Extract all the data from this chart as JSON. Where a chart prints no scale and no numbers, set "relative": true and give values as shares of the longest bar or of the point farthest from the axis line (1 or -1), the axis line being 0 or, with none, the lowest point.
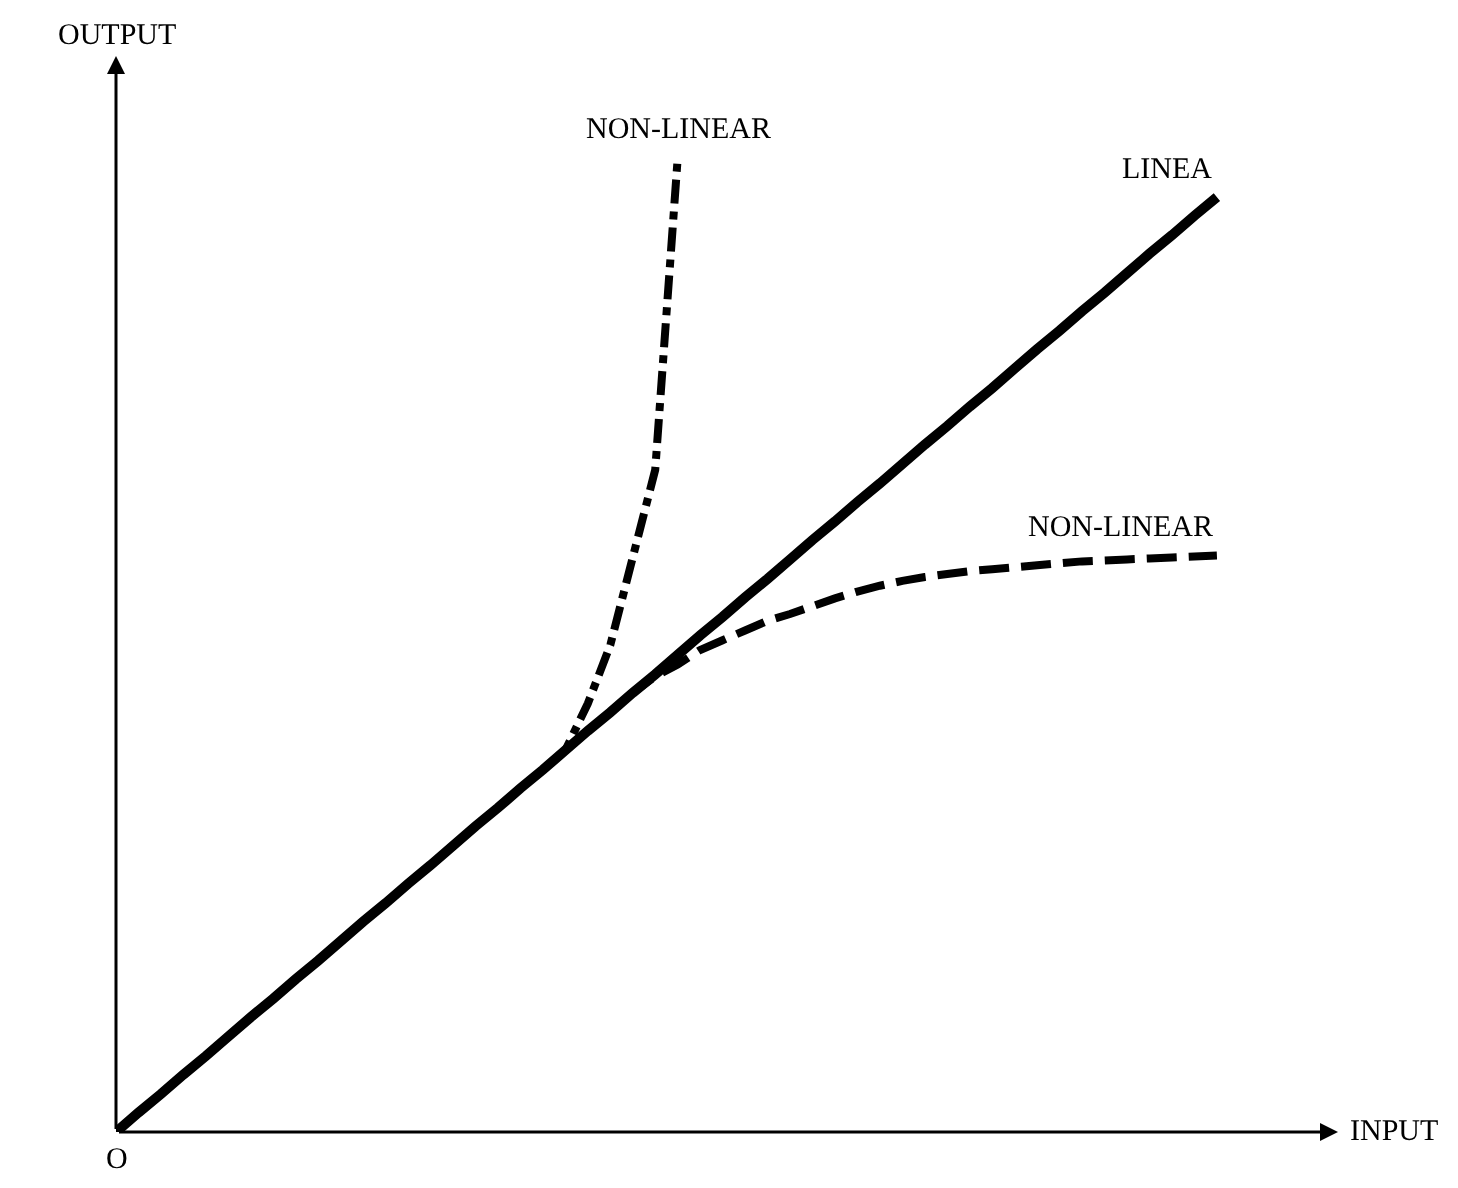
{
  "chart_data": {
    "type": "line",
    "relative": true,
    "xlabel": "INPUT",
    "ylabel": "OUTPUT",
    "annotations": [
      "O"
    ],
    "legend": false,
    "marker": "none",
    "categories": [
      null,
      null,
      null,
      null,
      null,
      null,
      null,
      null,
      null,
      null,
      null,
      null,
      null,
      null,
      null,
      null,
      null,
      null,
      null,
      null,
      null,
      null,
      null,
      null,
      null,
      null,
      null,
      null,
      null,
      null,
      null,
      null,
      null,
      null,
      null,
      null,
      null,
      null,
      null,
      null,
      null,
      null,
      null,
      null,
      null,
      null,
      null,
      null,
      null,
      null
    ],
    "series": [
      {
        "name": "LINEA",
        "color": "#000000",
        "line_style": "solid",
        "values": [
          0,
          0.02,
          0.039,
          0.059,
          0.078,
          0.098,
          0.118,
          0.137,
          0.157,
          0.176,
          0.196,
          0.216,
          0.235,
          0.255,
          0.274,
          0.294,
          0.314,
          0.333,
          0.353,
          0.372,
          0.392,
          0.412,
          0.431,
          0.451,
          0.47,
          0.49,
          0.51,
          0.529,
          0.549,
          0.568,
          0.588,
          0.608,
          0.627,
          0.647,
          0.666,
          0.686,
          0.706,
          0.725,
          0.745,
          0.764,
          0.784,
          0.804,
          0.823,
          0.843,
          0.862,
          0.882,
          0.902,
          0.921,
          0.941,
          0.96
        ]
      },
      {
        "name": "NON-LINEAR",
        "color": "#000000",
        "line_style": "dashdot",
        "values": [
          0,
          0.02,
          0.039,
          0.059,
          0.078,
          0.098,
          0.118,
          0.137,
          0.157,
          0.176,
          0.196,
          0.216,
          0.235,
          0.255,
          0.274,
          0.294,
          0.314,
          0.333,
          0.353,
          0.372,
          0.392,
          0.44,
          0.5,
          0.59,
          0.68,
          1,
          null,
          null,
          null,
          null,
          null,
          null,
          null,
          null,
          null,
          null,
          null,
          null,
          null,
          null,
          null,
          null,
          null,
          null,
          null,
          null,
          null,
          null,
          null,
          null
        ]
      },
      {
        "name": "NON-LINEAR",
        "color": "#000000",
        "line_style": "dashed",
        "values": [
          0,
          0.02,
          0.039,
          0.059,
          0.078,
          0.098,
          0.118,
          0.137,
          0.157,
          0.176,
          0.196,
          0.216,
          0.235,
          0.255,
          0.274,
          0.294,
          0.314,
          0.333,
          0.353,
          0.372,
          0.392,
          0.412,
          0.431,
          0.451,
          0.468,
          0.48,
          0.495,
          0.505,
          0.515,
          0.525,
          0.532,
          0.54,
          0.548,
          0.555,
          0.561,
          0.566,
          0.57,
          0.573,
          0.576,
          0.578,
          0.58,
          0.582,
          0.584,
          0.586,
          0.587,
          0.588,
          0.589,
          0.59,
          0.591,
          0.592
        ]
      }
    ]
  }
}
